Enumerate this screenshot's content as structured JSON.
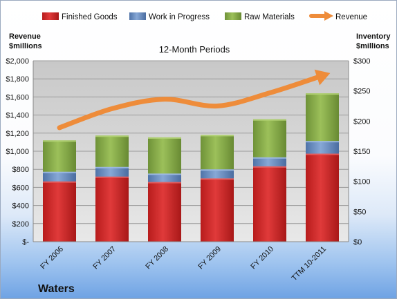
{
  "chart_data": {
    "type": "bar",
    "title": "12-Month Periods",
    "company": "Waters",
    "left_axis_title": [
      "Revenue",
      "$millions"
    ],
    "right_axis_title": [
      "Inventory",
      "$millions"
    ],
    "categories": [
      "FY 2006",
      "FY 2007",
      "FY 2008",
      "FY 2009",
      "FY 2010",
      "TTM 10-2011"
    ],
    "left_ticks": [
      "$-",
      "$200",
      "$400",
      "$600",
      "$800",
      "$1,000",
      "$1,200",
      "$1,400",
      "$1,600",
      "$1,800",
      "$2,000"
    ],
    "right_ticks": [
      "$0",
      "$50",
      "$100",
      "$150",
      "$200",
      "$250",
      "$300"
    ],
    "left_ylim": [
      0,
      2000
    ],
    "right_ylim": [
      0,
      300
    ],
    "stacked": true,
    "series": [
      {
        "name": "Finished Goods",
        "axis": "right",
        "color": "#d62b2b",
        "values": [
          100,
          108,
          99,
          105,
          125,
          146
        ]
      },
      {
        "name": "Work in Progress",
        "axis": "right",
        "color": "#6f93c8",
        "values": [
          16,
          16,
          14,
          15,
          15,
          21
        ]
      },
      {
        "name": "Raw Materials",
        "axis": "right",
        "color": "#8db04e",
        "values": [
          52,
          52,
          60,
          57,
          63,
          79
        ]
      },
      {
        "name": "Revenue",
        "axis": "left",
        "type": "line",
        "color": "#ee8c3a",
        "values": [
          1260,
          1470,
          1575,
          1500,
          1645,
          1835
        ]
      }
    ],
    "legend_position": "top",
    "grid": true
  }
}
